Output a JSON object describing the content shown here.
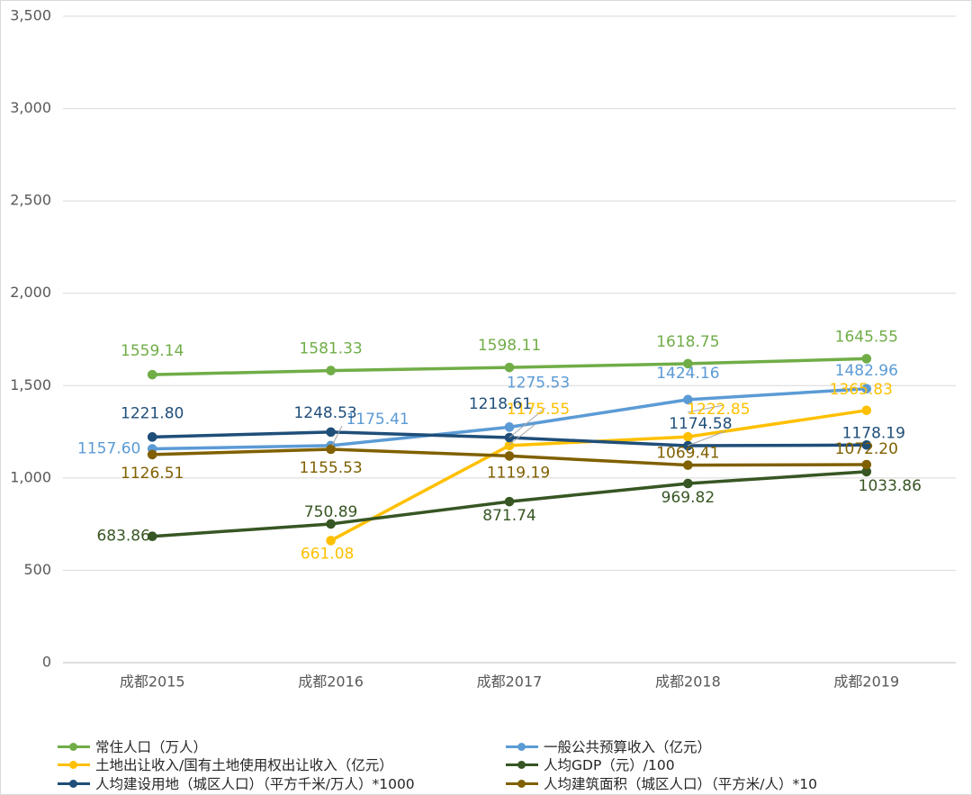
{
  "chart_data": {
    "type": "line",
    "categories": [
      "成都2015",
      "成都2016",
      "成都2017",
      "成都2018",
      "成都2019"
    ],
    "ylim": [
      0,
      3500
    ],
    "yticks": [
      "0",
      "500",
      "1,000",
      "1,500",
      "2,000",
      "2,500",
      "3,000",
      "3,500"
    ],
    "grid": true,
    "legend_position": "bottom",
    "series": [
      {
        "name": "常住人口（万人）",
        "color": "#70ad47",
        "values": [
          1559.14,
          1581.33,
          1598.11,
          1618.75,
          1645.55
        ],
        "labels": [
          "1559.14",
          "1581.33",
          "1598.11",
          "1618.75",
          "1645.55"
        ]
      },
      {
        "name": "一般公共预算收入（亿元）",
        "color": "#5b9bd5",
        "values": [
          1157.6,
          1175.41,
          1275.53,
          1424.16,
          1482.96
        ],
        "labels": [
          "1157.60",
          "1175.41",
          "1275.53",
          "1424.16",
          "1482.96"
        ]
      },
      {
        "name": "土地出让收入/国有土地使用权出让收入（亿元）",
        "color": "#ffc000",
        "values": [
          null,
          661.08,
          1175.55,
          1222.85,
          1365.83
        ],
        "labels": [
          "",
          "661.08",
          "1175.55",
          "1222.85",
          "1365.83"
        ]
      },
      {
        "name": "人均GDP（元）/100",
        "color": "#375623",
        "values": [
          683.86,
          750.89,
          871.74,
          969.82,
          1033.86
        ],
        "labels": [
          "683.86",
          "750.89",
          "871.74",
          "969.82",
          "1033.86"
        ]
      },
      {
        "name": "人均建设用地（城区人口）（平方千米/万人）*1000",
        "color": "#1f4e79",
        "values": [
          1221.8,
          1248.53,
          1218.61,
          1174.58,
          1178.19
        ],
        "labels": [
          "1221.80",
          "1248.53",
          "1218.61",
          "1174.58",
          "1178.19"
        ]
      },
      {
        "name": "人均建筑面积（城区人口）（平方米/人）*10",
        "color": "#806000",
        "values": [
          1126.51,
          1155.53,
          1119.19,
          1069.41,
          1072.2
        ],
        "labels": [
          "1126.51",
          "1155.53",
          "1119.19",
          "1069.41",
          "1072.20"
        ]
      }
    ]
  }
}
